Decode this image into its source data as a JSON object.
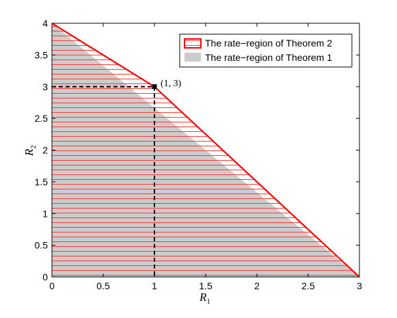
{
  "chart_data": {
    "type": "area",
    "title": "",
    "xlabel": "R",
    "xlabel_sub": "1",
    "ylabel": "R",
    "ylabel_sub": "2",
    "xlim": [
      0,
      3
    ],
    "ylim": [
      0,
      4
    ],
    "xticks": [
      0,
      0.5,
      1,
      1.5,
      2,
      2.5,
      3
    ],
    "xtick_labels": [
      "0",
      "0.5",
      "1",
      "1.5",
      "2",
      "2.5",
      "3"
    ],
    "yticks": [
      0,
      0.5,
      1,
      1.5,
      2,
      2.5,
      3,
      3.5,
      4
    ],
    "ytick_labels": [
      "0",
      "0.5",
      "1",
      "1.5",
      "2",
      "2.5",
      "3",
      "3.5",
      "4"
    ],
    "grid": false,
    "legend_position": "top-right",
    "series": [
      {
        "name": "The rate−region of Theorem 2",
        "style": "red-outline-hatched",
        "color": "#ff0000",
        "x": [
          0,
          0,
          1,
          3,
          0
        ],
        "y": [
          0,
          4,
          3,
          0,
          0
        ]
      },
      {
        "name": "The rate−region of Theorem 1",
        "style": "solid-fill",
        "color": "#cccccc",
        "x": [
          0,
          0,
          3,
          0
        ],
        "y": [
          0,
          4,
          0,
          0
        ]
      }
    ],
    "annotations": [
      {
        "text": "(1, 3)",
        "x": 1,
        "y": 3,
        "marker": "square",
        "dashed_guides": true
      }
    ]
  }
}
